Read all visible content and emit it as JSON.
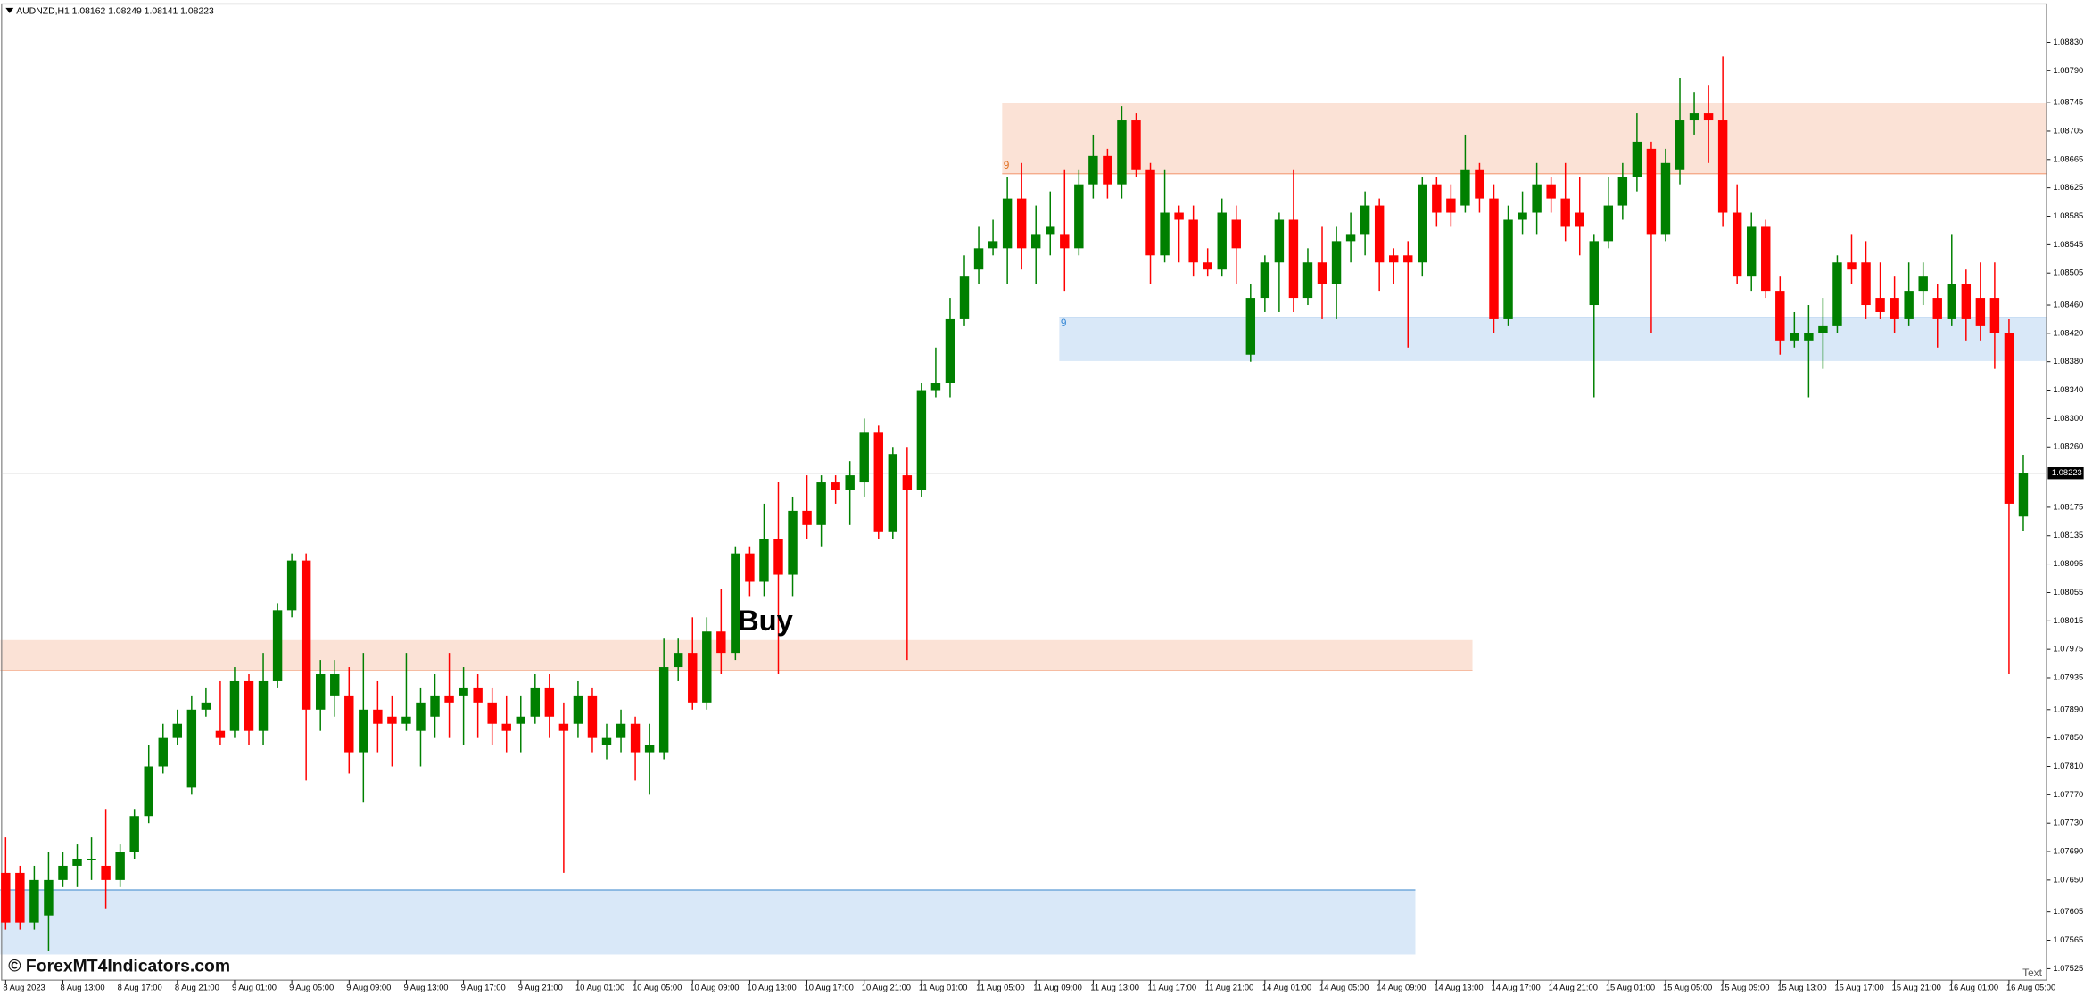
{
  "chart_data": {
    "type": "candlestick",
    "title": "AUDNZD,H1  1.08162 1.08249 1.08141 1.08223",
    "categories": [
      "8 Aug 2023",
      null,
      null,
      null,
      "8 Aug 13:00",
      null,
      null,
      null,
      "8 Aug 17:00",
      null,
      null,
      null,
      "8 Aug 21:00",
      null,
      null,
      null,
      "9 Aug 01:00",
      null,
      null,
      null,
      "9 Aug 05:00",
      null,
      null,
      null,
      "9 Aug 09:00",
      null,
      null,
      null,
      "9 Aug 13:00",
      null,
      null,
      null,
      "9 Aug 17:00",
      null,
      null,
      null,
      "9 Aug 21:00",
      null,
      null,
      null,
      "10 Aug 01:00",
      null,
      null,
      null,
      "10 Aug 05:00",
      null,
      null,
      null,
      "10 Aug 09:00",
      null,
      null,
      null,
      "10 Aug 13:00",
      null,
      null,
      null,
      "10 Aug 17:00",
      null,
      null,
      null,
      "10 Aug 21:00",
      null,
      null,
      null,
      "11 Aug 01:00",
      null,
      null,
      null,
      "11 Aug 05:00",
      null,
      null,
      null,
      "11 Aug 09:00",
      null,
      null,
      null,
      "11 Aug 13:00",
      null,
      null,
      null,
      "11 Aug 17:00",
      null,
      null,
      null,
      "11 Aug 21:00",
      null,
      null,
      null,
      "14 Aug 01:00",
      null,
      null,
      null,
      "14 Aug 05:00",
      null,
      null,
      null,
      "14 Aug 09:00",
      null,
      null,
      null,
      "14 Aug 13:00",
      null,
      null,
      null,
      "14 Aug 17:00",
      null,
      null,
      null,
      "14 Aug 21:00",
      null,
      null,
      null,
      "15 Aug 01:00",
      null,
      null,
      null,
      "15 Aug 05:00",
      null,
      null,
      null,
      "15 Aug 09:00",
      null,
      null,
      null,
      "15 Aug 13:00",
      null,
      null,
      null,
      "15 Aug 17:00",
      null,
      null,
      null,
      "15 Aug 21:00",
      null,
      null,
      null,
      "16 Aug 01:00",
      null,
      null,
      null,
      "16 Aug 05:00",
      null
    ],
    "open": [
      1.0766,
      1.0766,
      1.0759,
      1.076,
      1.0765,
      1.0767,
      1.0768,
      1.0767,
      1.0765,
      1.0769,
      1.0774,
      1.0781,
      1.0785,
      1.0778,
      1.0789,
      1.0786,
      1.0786,
      1.0793,
      1.0786,
      1.0793,
      1.0803,
      1.081,
      1.0789,
      1.0791,
      1.0791,
      1.0783,
      1.0789,
      1.0788,
      1.0787,
      1.0786,
      1.0788,
      1.0791,
      1.0791,
      1.0792,
      1.079,
      1.0787,
      1.0787,
      1.0788,
      1.0792,
      1.0787,
      1.0787,
      1.0791,
      1.0784,
      1.0785,
      1.0787,
      1.0783,
      1.0783,
      1.0795,
      1.0797,
      1.079,
      1.08,
      1.0797,
      1.0811,
      1.0807,
      1.0813,
      1.0808,
      1.0817,
      1.0815,
      1.0821,
      1.082,
      1.0821,
      1.0828,
      1.0814,
      1.0822,
      1.082,
      1.0834,
      1.0835,
      1.0844,
      1.0851,
      1.0854,
      1.0854,
      1.0861,
      1.0854,
      1.0856,
      1.0856,
      1.0854,
      1.0863,
      1.0867,
      1.0863,
      1.0872,
      1.0865,
      1.0853,
      1.0859,
      1.0858,
      1.0852,
      1.0851,
      1.0858,
      1.0839,
      1.0847,
      1.0852,
      1.0858,
      1.0847,
      1.0852,
      1.0849,
      1.0855,
      1.0856,
      1.086,
      1.0853,
      1.0853,
      1.0852,
      1.0863,
      1.0861,
      1.086,
      1.0865,
      1.0861,
      1.0844,
      1.0858,
      1.0859,
      1.0863,
      1.0861,
      1.0859,
      1.0846,
      1.0855,
      1.086,
      1.0864,
      1.0868,
      1.0856,
      1.0865,
      1.0872,
      1.0873,
      1.0872,
      1.0859,
      1.085,
      1.0857,
      1.0848,
      1.0841,
      1.0841,
      1.0842,
      1.0843,
      1.0852,
      1.0852,
      1.0847,
      1.0847,
      1.0844,
      1.0848,
      1.0847,
      1.0844,
      1.0849,
      1.0847,
      1.0847,
      1.0842,
      1.08162
    ],
    "high": [
      1.0771,
      1.0767,
      1.0767,
      1.0769,
      1.0769,
      1.077,
      1.0771,
      1.0775,
      1.077,
      1.0775,
      1.0784,
      1.0787,
      1.0789,
      1.0791,
      1.0792,
      1.0793,
      1.0795,
      1.0794,
      1.0797,
      1.0804,
      1.0811,
      1.0811,
      1.0796,
      1.0796,
      1.0795,
      1.0797,
      1.0793,
      1.0791,
      1.0797,
      1.0792,
      1.0794,
      1.0797,
      1.0795,
      1.0794,
      1.0792,
      1.0791,
      1.0791,
      1.0794,
      1.0794,
      1.079,
      1.0793,
      1.0792,
      1.0787,
      1.0789,
      1.0788,
      1.0787,
      1.0799,
      1.0799,
      1.0802,
      1.0802,
      1.0806,
      1.0812,
      1.0812,
      1.0818,
      1.0821,
      1.0819,
      1.0822,
      1.0822,
      1.0822,
      1.0824,
      1.083,
      1.0829,
      1.0826,
      1.0826,
      1.0835,
      1.084,
      1.0847,
      1.0853,
      1.0857,
      1.0858,
      1.0864,
      1.0866,
      1.086,
      1.0862,
      1.0865,
      1.0865,
      1.087,
      1.0868,
      1.0874,
      1.0873,
      1.0866,
      1.0865,
      1.086,
      1.086,
      1.0854,
      1.0861,
      1.086,
      1.0849,
      1.0853,
      1.0859,
      1.0865,
      1.0854,
      1.0857,
      1.0857,
      1.0859,
      1.0862,
      1.0861,
      1.0854,
      1.0855,
      1.0864,
      1.0864,
      1.0863,
      1.087,
      1.0866,
      1.0863,
      1.086,
      1.0862,
      1.0866,
      1.0864,
      1.0866,
      1.0864,
      1.0856,
      1.0864,
      1.0866,
      1.0873,
      1.0869,
      1.0868,
      1.0878,
      1.0876,
      1.0877,
      1.0881,
      1.0863,
      1.0859,
      1.0858,
      1.085,
      1.0845,
      1.0846,
      1.0847,
      1.0853,
      1.0856,
      1.0855,
      1.0852,
      1.085,
      1.0852,
      1.0852,
      1.0849,
      1.0856,
      1.0851,
      1.0852,
      1.0852,
      1.0844,
      1.08249
    ],
    "low": [
      1.0758,
      1.0758,
      1.0758,
      1.0755,
      1.0764,
      1.0764,
      1.0765,
      1.0761,
      1.0764,
      1.0768,
      1.0773,
      1.078,
      1.0784,
      1.0777,
      1.0788,
      1.0784,
      1.0785,
      1.0784,
      1.0784,
      1.0792,
      1.0802,
      1.0779,
      1.0786,
      1.0788,
      1.078,
      1.0776,
      1.0783,
      1.0781,
      1.0786,
      1.0781,
      1.0785,
      1.0785,
      1.0784,
      1.0785,
      1.0784,
      1.0783,
      1.0783,
      1.0787,
      1.0785,
      1.0766,
      1.0785,
      1.0783,
      1.0782,
      1.0783,
      1.0779,
      1.0777,
      1.0782,
      1.0793,
      1.0789,
      1.0789,
      1.0794,
      1.0796,
      1.0805,
      1.0805,
      1.0794,
      1.0805,
      1.0813,
      1.0812,
      1.0818,
      1.0815,
      1.0819,
      1.0813,
      1.0813,
      1.0796,
      1.0819,
      1.0833,
      1.0833,
      1.0843,
      1.0849,
      1.0853,
      1.0849,
      1.0851,
      1.0849,
      1.0853,
      1.0848,
      1.0853,
      1.0861,
      1.0861,
      1.0861,
      1.0864,
      1.0849,
      1.0852,
      1.0852,
      1.085,
      1.085,
      1.085,
      1.0849,
      1.0838,
      1.0845,
      1.0845,
      1.0845,
      1.0846,
      1.0844,
      1.0844,
      1.0852,
      1.0853,
      1.0848,
      1.0849,
      1.084,
      1.085,
      1.0857,
      1.0857,
      1.0859,
      1.0859,
      1.0842,
      1.0843,
      1.0856,
      1.0856,
      1.0859,
      1.0855,
      1.0853,
      1.0833,
      1.0854,
      1.0858,
      1.0862,
      1.0842,
      1.0855,
      1.0863,
      1.087,
      1.0866,
      1.0857,
      1.0849,
      1.0848,
      1.0847,
      1.0839,
      1.084,
      1.0833,
      1.0837,
      1.0842,
      1.0849,
      1.0844,
      1.0844,
      1.0842,
      1.0843,
      1.0846,
      1.084,
      1.0843,
      1.0841,
      1.0841,
      1.0837,
      1.0794,
      1.08141
    ],
    "close": [
      1.0759,
      1.0759,
      1.0765,
      1.0765,
      1.0767,
      1.0768,
      1.0768,
      1.0765,
      1.0769,
      1.0774,
      1.0781,
      1.0785,
      1.0787,
      1.0789,
      1.079,
      1.0785,
      1.0793,
      1.0786,
      1.0793,
      1.0803,
      1.081,
      1.0789,
      1.0794,
      1.0794,
      1.0783,
      1.0789,
      1.0787,
      1.0787,
      1.0788,
      1.079,
      1.0791,
      1.079,
      1.0792,
      1.079,
      1.0787,
      1.0786,
      1.0788,
      1.0792,
      1.0788,
      1.0786,
      1.0791,
      1.0785,
      1.0785,
      1.0787,
      1.0783,
      1.0784,
      1.0795,
      1.0797,
      1.079,
      1.08,
      1.0797,
      1.0811,
      1.0807,
      1.0813,
      1.0808,
      1.0817,
      1.0815,
      1.0821,
      1.082,
      1.0822,
      1.0828,
      1.0814,
      1.0825,
      1.082,
      1.0834,
      1.0835,
      1.0844,
      1.085,
      1.0854,
      1.0855,
      1.0861,
      1.0854,
      1.0856,
      1.0857,
      1.0854,
      1.0863,
      1.0867,
      1.0863,
      1.0872,
      1.0865,
      1.0853,
      1.0859,
      1.0858,
      1.0852,
      1.0851,
      1.0859,
      1.0854,
      1.0847,
      1.0852,
      1.0858,
      1.0847,
      1.0852,
      1.0849,
      1.0855,
      1.0856,
      1.086,
      1.0852,
      1.0852,
      1.0852,
      1.0863,
      1.0859,
      1.0859,
      1.0865,
      1.0861,
      1.0844,
      1.0858,
      1.0859,
      1.0863,
      1.0861,
      1.0857,
      1.0857,
      1.0855,
      1.086,
      1.0864,
      1.0869,
      1.0856,
      1.0866,
      1.0872,
      1.0873,
      1.0872,
      1.0859,
      1.085,
      1.0857,
      1.0848,
      1.0841,
      1.0842,
      1.0842,
      1.0843,
      1.0852,
      1.0851,
      1.0846,
      1.0845,
      1.0844,
      1.0848,
      1.085,
      1.0844,
      1.0849,
      1.0844,
      1.0843,
      1.0842,
      1.0818,
      1.08223
    ],
    "up_color": "#008000",
    "down_color": "#ff0000",
    "ylim": [
      1.07509,
      1.08884
    ],
    "yticks": [
      {
        "value": 1.0883,
        "label": "1.08830"
      },
      {
        "value": 1.0879,
        "label": "1.08790"
      },
      1.08745,
      1.08705,
      1.08665,
      1.08625,
      1.08585,
      1.08545,
      1.08505,
      {
        "value": 1.0846,
        "label": "1.08460"
      },
      {
        "value": 1.0842,
        "label": "1.08420"
      },
      {
        "value": 1.0838,
        "label": "1.08380"
      },
      {
        "value": 1.0834,
        "label": "1.08340"
      },
      {
        "value": 1.083,
        "label": "1.08300"
      },
      {
        "value": 1.0826,
        "label": "1.08260"
      },
      1.08175,
      1.08135,
      1.08095,
      1.08055,
      1.08015,
      1.07975,
      1.07935,
      {
        "value": 1.0789,
        "label": "1.07890"
      },
      {
        "value": 1.0785,
        "label": "1.07850"
      },
      {
        "value": 1.0781,
        "label": "1.07810"
      },
      {
        "value": 1.0777,
        "label": "1.07770"
      },
      {
        "value": 1.0773,
        "label": "1.07730"
      },
      {
        "value": 1.0769,
        "label": "1.07690"
      },
      {
        "value": 1.0765,
        "label": "1.07650"
      },
      1.07605,
      1.07565,
      1.07525
    ],
    "grid": false,
    "current_price": 1.08223,
    "zones": [
      {
        "top": 1.07988,
        "bottom": 1.07945,
        "color": "#fbe2d6",
        "line_color": "#f4a582"
      },
      {
        "top": 1.07636,
        "bottom": 1.07545,
        "color": "#d9e8f8",
        "line_color": "#5b9bd5"
      },
      {
        "top": 1.08744,
        "bottom": 1.08645,
        "color": "#fbe2d6",
        "line_color": "#f4a582",
        "label": "9",
        "label_color": "#e07020"
      },
      {
        "top": 1.08443,
        "bottom": 1.08381,
        "color": "#d9e8f8",
        "line_color": "#5b9bd5",
        "label": "9",
        "label_color": "#3a8ad6"
      }
    ],
    "annotation": "Buy",
    "watermark": "© ForexMT4Indicators.com",
    "corner_text": "Text"
  }
}
